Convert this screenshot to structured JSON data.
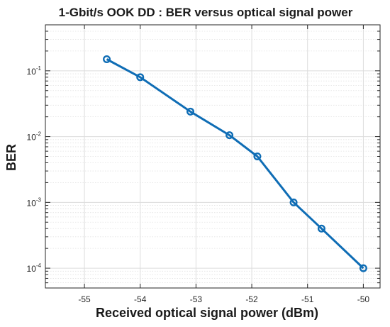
{
  "chart_data": {
    "type": "line",
    "title": "1-Gbit/s OOK DD : BER versus optical signal power",
    "xlabel": "Received optical signal power (dBm)",
    "ylabel": "BER",
    "xlim": [
      -55.7,
      -49.7
    ],
    "ylim": [
      5e-05,
      0.5
    ],
    "yscale": "log",
    "grid": true,
    "x_ticks": [
      {
        "value": -55,
        "label": "-55"
      },
      {
        "value": -54,
        "label": "-54"
      },
      {
        "value": -53,
        "label": "-53"
      },
      {
        "value": -52,
        "label": "-52"
      },
      {
        "value": -51,
        "label": "-51"
      },
      {
        "value": -50,
        "label": "-50"
      }
    ],
    "y_ticks": [
      {
        "value": 0.1,
        "base": "10",
        "exp": "-1"
      },
      {
        "value": 0.01,
        "base": "10",
        "exp": "-2"
      },
      {
        "value": 0.001,
        "base": "10",
        "exp": "-3"
      },
      {
        "value": 0.0001,
        "base": "10",
        "exp": "-4"
      }
    ],
    "series": [
      {
        "color": "#0f6db5",
        "marker": "circle",
        "x": [
          -54.6,
          -54.0,
          -53.1,
          -52.4,
          -51.9,
          -51.25,
          -50.75,
          -50.0
        ],
        "y": [
          0.15,
          0.08,
          0.024,
          0.0105,
          0.005,
          0.001,
          0.0004,
          0.0001
        ]
      }
    ]
  }
}
